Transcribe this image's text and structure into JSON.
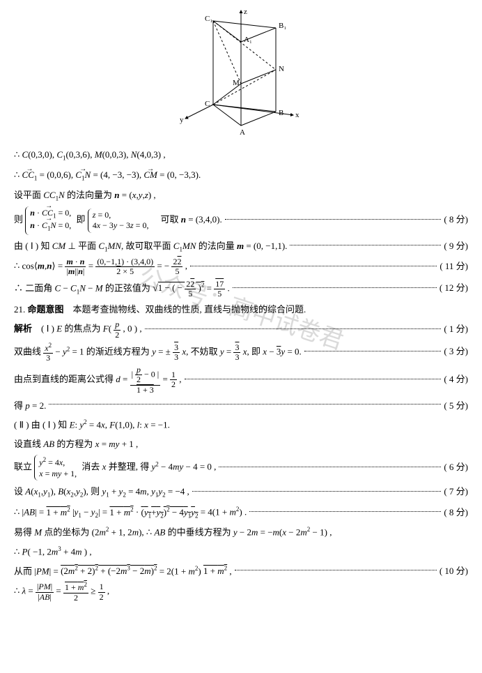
{
  "watermark": "公众号：高中试卷君",
  "diagram": {
    "axis_labels": [
      "x",
      "y",
      "z"
    ],
    "vertex_labels": [
      "A",
      "B",
      "C",
      "A₁",
      "B₁",
      "C₁",
      "M",
      "N"
    ]
  },
  "lines": [
    {
      "type": "plain",
      "html": "∴ <i>C</i>(0,3,0), <i>C</i><sub>1</sub>(0,3,6), <i>M</i>(0,0,3), <i>N</i>(4,0,3) ,"
    },
    {
      "type": "plain",
      "html": "∴ <span class='vec'><i>CC</i><sub>1</sub></span> = (0,0,6), <span class='vec'><i>C</i><sub>1</sub><i>N</i></span> = (4, −3, −3), <span class='vec'><i>CM</i></span> = (0, −3,3)."
    },
    {
      "type": "plain",
      "html": "设平面 <i>CC</i><sub>1</sub><i>N</i> 的法向量为 <b><i>n</i></b> = (<i>x</i>,<i>y</i>,<i>z</i>) ,"
    },
    {
      "type": "scored",
      "score": "( 8 分)",
      "html": "则 <span class='brace'><b><i>n</i></b> · <span class='vec'><i>CC</i><sub>1</sub></span> = 0,<br><b><i>n</i></b> · <span class='vec'><i>C</i><sub>1</sub><i>N</i></span> = 0,</span> 即 <span class='brace'><i>z</i> = 0,<br>4<i>x</i> − 3<i>y</i> − 3<i>z</i> = 0,</span>　可取 <b><i>n</i></b> = (3,4,0)."
    },
    {
      "type": "scored",
      "score": "( 9 分)",
      "html": "由 ( Ⅰ ) 知 <i>CM</i> ⊥ 平面 <i>C</i><sub>1</sub><i>MN</i>, 故可取平面 <i>C</i><sub>1</sub><i>MN</i> 的法向量 <b><i>m</i></b> = (0, −1,1)."
    },
    {
      "type": "scored",
      "score": "( 11 分)",
      "html": "∴ cos⟨<b><i>m</i></b>,<b><i>n</i></b>⟩ = <span class='frac'><span class='num'><b><i>m</i></b> · <b><i>n</i></b></span><span class='den'>|<b><i>m</i></b>||<b><i>n</i></b>|</span></span> = <span class='frac'><span class='num'>(0,−1,1) · (3,4,0)</span><span class='den'><span class='sqrt'>2</span> × 5</span></span> = − <span class='frac'><span class='num'>2<span class='sqrt'>2</span></span><span class='den'>5</span></span> ,"
    },
    {
      "type": "scored",
      "score": "( 12 分)",
      "html": "∴ 二面角 <i>C</i> − <i>C</i><sub>1</sub><i>N</i> − <i>M</i> 的正弦值为 <span style='font-size:14px'>√</span><span class='sqrt'>1 − ( − <span class='frac'><span class='num'>2<span class='sqrt'>2</span></span><span class='den'>5</span></span> )<sup>2</sup></span> = <span class='frac'><span class='num'><span class='sqrt'>17</span></span><span class='den'>5</span></span> ."
    },
    {
      "type": "plain",
      "html": "<span class='q21'>21. <b>命题意图</b>　本题考查抛物线、双曲线的性质, 直线与抛物线的综合问题.</span>"
    },
    {
      "type": "scored",
      "score": "( 1 分)",
      "html": "<b>解析</b>　( Ⅰ ) <i>E</i> 的焦点为 <i>F</i>( <span class='frac'><span class='num'><i>p</i></span><span class='den'>2</span></span> , 0 ) ,"
    },
    {
      "type": "scored",
      "score": "( 3 分)",
      "html": "双曲线 <span class='frac'><span class='num'><i>x</i><sup>2</sup></span><span class='den'>3</span></span> − <i>y</i><sup>2</sup> = 1 的渐近线方程为 <i>y</i> = ± <span class='frac'><span class='num'><span class='sqrt'>3</span></span><span class='den'>3</span></span> <i>x</i>, 不妨取 <i>y</i> = <span class='frac'><span class='num'><span class='sqrt'>3</span></span><span class='den'>3</span></span> <i>x</i>, 即 <i>x</i> − <span class='sqrt'>3</span><i>y</i> = 0."
    },
    {
      "type": "scored",
      "score": "( 4 分)",
      "html": "由点到直线的距离公式得 <i>d</i> = <span class='frac'><span class='num'>| <span class='frac'><span class='num'><i>p</i></span><span class='den'>2</span></span> − 0 |</span><span class='den'><span class='sqrt'>1 + 3</span></span></span> = <span class='frac'><span class='num'>1</span><span class='den'>2</span></span> ,"
    },
    {
      "type": "scored",
      "score": "( 5 分)",
      "html": "得 <i>p</i> = 2."
    },
    {
      "type": "plain",
      "html": "( Ⅱ ) 由 ( Ⅰ ) 知 <i>E</i>: <i>y</i><sup>2</sup> = 4<i>x</i>, <i>F</i>(1,0), <i>l</i>: <i>x</i> = −1."
    },
    {
      "type": "plain",
      "html": "设直线 <i>AB</i> 的方程为 <i>x</i> = <i>my</i> + 1 ,"
    },
    {
      "type": "scored",
      "score": "( 6 分)",
      "html": "联立 <span class='brace'><i>y</i><sup>2</sup> = 4<i>x</i>,<br><i>x</i> = <i>my</i> + 1,</span> 消去 <i>x</i> 并整理, 得 <i>y</i><sup>2</sup> − 4<i>my</i> − 4 = 0 ,"
    },
    {
      "type": "scored",
      "score": "( 7 分)",
      "html": "设 <i>A</i>(<i>x</i><sub>1</sub>,<i>y</i><sub>1</sub>), <i>B</i>(<i>x</i><sub>2</sub>,<i>y</i><sub>2</sub>), 则 <i>y</i><sub>1</sub> + <i>y</i><sub>2</sub> = 4<i>m</i>, <i>y</i><sub>1</sub><i>y</i><sub>2</sub> = −4 ,"
    },
    {
      "type": "scored",
      "score": "( 8 分)",
      "html": "∴ |<i>AB</i>| = <span class='sqrt'>1 + <i>m</i><sup>2</sup></span> |<i>y</i><sub>1</sub> − <i>y</i><sub>2</sub>| = <span class='sqrt'>1 + <i>m</i><sup>2</sup></span> · <span class='sqrt'>(<i>y</i><sub>1</sub>+<i>y</i><sub>2</sub>)<sup>2</sup> − 4<i>y</i><sub>1</sub><i>y</i><sub>2</sub></span> = 4(1 + <i>m</i><sup>2</sup>) ."
    },
    {
      "type": "plain",
      "html": "易得 <i>M</i> 点的坐标为 (2<i>m</i><sup>2</sup> + 1, 2<i>m</i>), ∴ <i>AB</i> 的中垂线方程为 <i>y</i> − 2<i>m</i> = −<i>m</i>(<i>x</i> − 2<i>m</i><sup>2</sup> − 1) ,"
    },
    {
      "type": "plain",
      "html": "∴ <i>P</i>( −1, 2<i>m</i><sup>3</sup> + 4<i>m</i> ) ,"
    },
    {
      "type": "scored",
      "score": "( 10 分)",
      "html": "从而 |<i>PM</i>| = <span class='sqrt'>(2<i>m</i><sup>2</sup> + 2)<sup>2</sup> + (−2<i>m</i><sup>3</sup> − 2<i>m</i>)<sup>2</sup></span> = 2(1 + <i>m</i><sup>2</sup>) <span class='sqrt'>1 + <i>m</i><sup>2</sup></span> ,"
    },
    {
      "type": "plain",
      "html": "∴ <i>λ</i> = <span class='frac'><span class='num'>|<i>PM</i>|</span><span class='den'>|<i>AB</i>|</span></span> = <span class='frac'><span class='num'><span class='sqrt'>1 + <i>m</i><sup>2</sup></span></span><span class='den'>2</span></span> ≥ <span class='frac'><span class='num'>1</span><span class='den'>2</span></span> ,"
    }
  ]
}
